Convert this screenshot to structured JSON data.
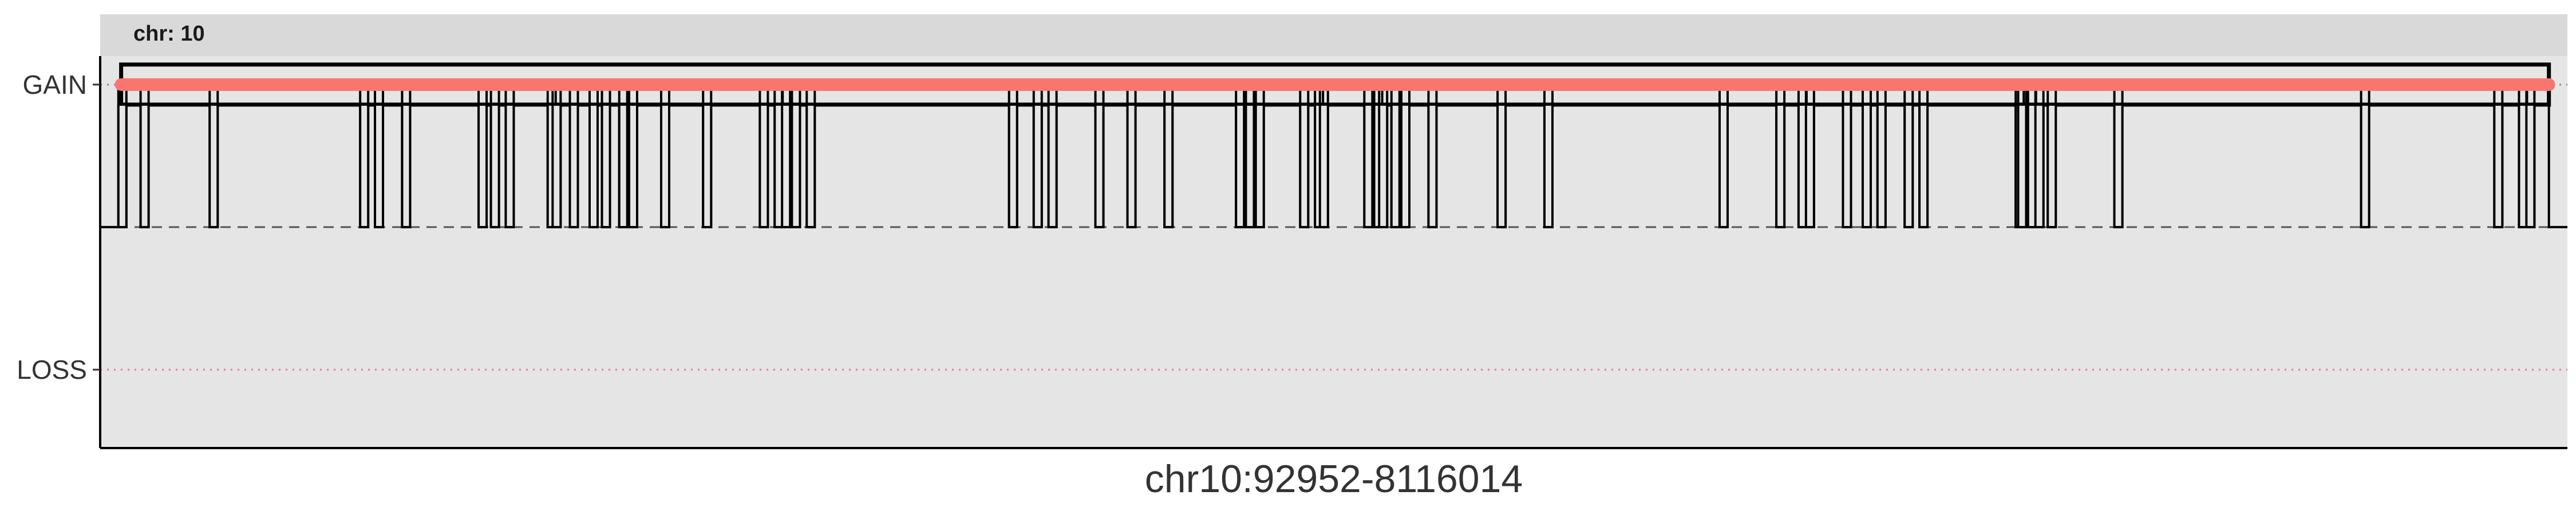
{
  "chart_data": {
    "type": "line",
    "facet_label": "chr: 10",
    "xlabel": "chr10:92952-8116014",
    "ylabel": "",
    "y_categories": [
      "LOSS",
      "GAIN"
    ],
    "y_values": {
      "LOSS": -1,
      "NEUTRAL": 0,
      "GAIN": 1
    },
    "ylim": [
      -1.55,
      1.2
    ],
    "x_range_fraction": [
      0,
      1
    ],
    "gain_segment": {
      "y": "GAIN",
      "x_start": 0.0085,
      "x_end": 0.9925
    },
    "neutral_dips_fraction": [
      0.009,
      0.018,
      0.046,
      0.107,
      0.113,
      0.124,
      0.155,
      0.16,
      0.166,
      0.183,
      0.185,
      0.192,
      0.2,
      0.205,
      0.212,
      0.216,
      0.229,
      0.246,
      0.269,
      0.275,
      0.278,
      0.282,
      0.288,
      0.37,
      0.38,
      0.386,
      0.405,
      0.418,
      0.433,
      0.462,
      0.466,
      0.47,
      0.488,
      0.494,
      0.496,
      0.514,
      0.518,
      0.52,
      0.525,
      0.529,
      0.54,
      0.568,
      0.587,
      0.658,
      0.681,
      0.69,
      0.693,
      0.708,
      0.716,
      0.722,
      0.733,
      0.739,
      0.778,
      0.779,
      0.783,
      0.786,
      0.791,
      0.818,
      0.918,
      0.972,
      0.982,
      0.985
    ],
    "colors": {
      "panel_bg": "#e5e5e5",
      "strip_bg": "#d9d9d9",
      "gain_line": "#f8766d",
      "loss_line": "#e377a0",
      "step_line": "#000000",
      "neutral_line": "#555555"
    },
    "grid": false,
    "legend": "none"
  }
}
